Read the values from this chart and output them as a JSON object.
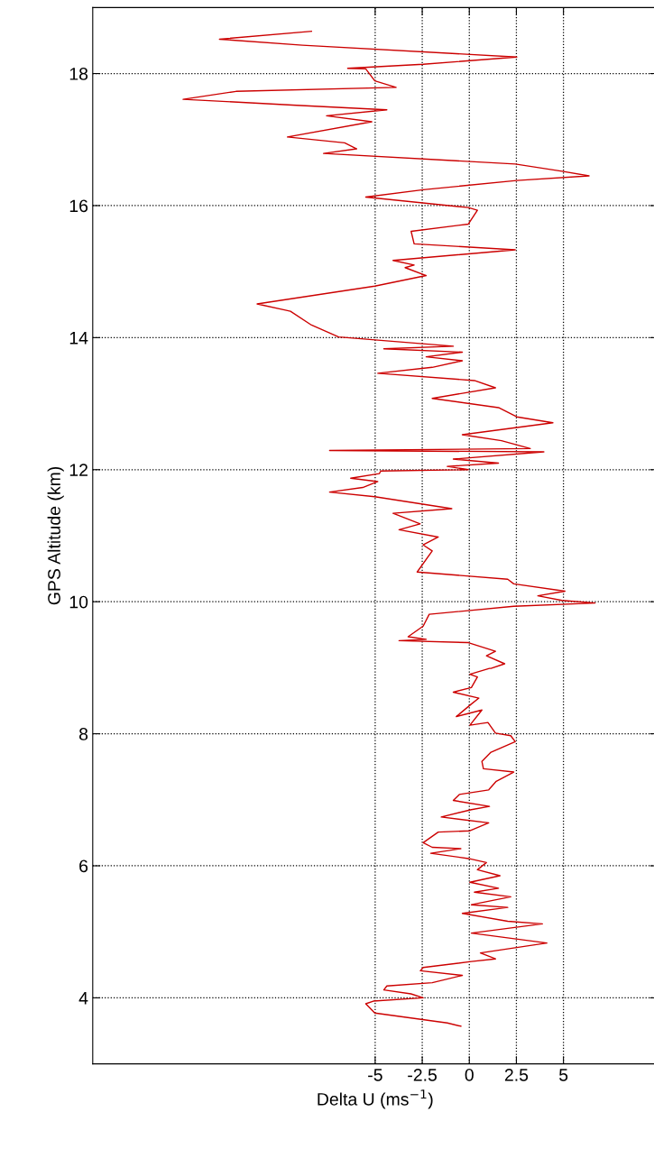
{
  "chart_data": {
    "type": "line",
    "xlabel": "Delta U (ms$^{−1}$)",
    "ylabel": "GPS Altitude (km)",
    "xlim": [
      -20,
      10
    ],
    "xticks": [
      -5,
      -2.5,
      0,
      2.5,
      5
    ],
    "ylim": [
      3,
      19
    ],
    "yticks": [
      4,
      6,
      8,
      10,
      12,
      14,
      16,
      18
    ],
    "grid": true,
    "marker": "none",
    "line_style": "solid",
    "series": [
      {
        "color": "#cc0000",
        "x": [
          -0.45,
          -1.17,
          -5.02,
          -5.5,
          -5.1,
          -2.45,
          -3.1,
          -4.54,
          -4.38,
          -1.97,
          -0.37,
          -2.6,
          -2.45,
          0.11,
          1.39,
          0.59,
          4.12,
          0.11,
          3.88,
          2.04,
          -0.37,
          2.04,
          0.11,
          2.2,
          0.27,
          1.55,
          0.03,
          1.63,
          0.43,
          0.91,
          -0.05,
          -2.05,
          -0.45,
          -1.97,
          -2.45,
          -1.65,
          0.03,
          1.03,
          -1.49,
          0.11,
          1.07,
          -0.85,
          -0.53,
          1.03,
          1.43,
          2.36,
          0.75,
          0.67,
          1.15,
          2.44,
          2.2,
          1.39,
          0.99,
          0.03,
          0.67,
          -0.69,
          0.11,
          0.51,
          -0.85,
          0.11,
          0.43,
          0.03,
          1.07,
          1.15,
          1.88,
          0.91,
          1.39,
          -0.05,
          -3.73,
          -2.29,
          -3.25,
          -2.45,
          -2.13,
          2.36,
          6.68,
          4.92,
          3.64,
          5.08,
          2.36,
          2.04,
          -2.77,
          -1.97,
          -2.45,
          -1.65,
          -3.73,
          -2.61,
          -4.05,
          -0.93,
          -5.02,
          -7.42,
          -5.66,
          -4.86,
          -6.3,
          -4.78,
          -4.7,
          -0.05,
          -1.17,
          1.55,
          -0.85,
          3.96,
          -7.42,
          3.24,
          1.71,
          -0.37,
          4.44,
          2.52,
          1.55,
          -1.97,
          1.39,
          0.27,
          -4.86,
          -1.97,
          -0.37,
          -2.29,
          -0.37,
          -4.54,
          -0.85,
          -6.94,
          -8.38,
          -9.5,
          -9.82,
          -11.27,
          -5.02,
          -2.29,
          -3.41,
          -2.93,
          -4.05,
          2.44,
          -2.93,
          -3.09,
          -0.05,
          0.43,
          -0.05,
          -5.5,
          -2.45,
          2.52,
          6.36,
          4.92,
          2.44,
          -7.74,
          -5.98,
          -6.62,
          -9.66,
          -5.18,
          -7.58,
          -4.38,
          -9.18,
          -15.2,
          -12.39,
          -3.89,
          -5.02,
          -5.5,
          -6.46,
          -2.45,
          2.52,
          -8.86,
          -13.27,
          -8.38
        ],
        "values": [
          3.57,
          3.62,
          3.77,
          3.91,
          3.95,
          4.0,
          4.06,
          4.12,
          4.18,
          4.23,
          4.34,
          4.41,
          4.46,
          4.55,
          4.59,
          4.68,
          4.83,
          4.98,
          5.12,
          5.16,
          5.28,
          5.37,
          5.41,
          5.53,
          5.6,
          5.66,
          5.75,
          5.85,
          5.94,
          6.05,
          6.11,
          6.19,
          6.26,
          6.28,
          6.35,
          6.51,
          6.53,
          6.65,
          6.74,
          6.85,
          6.9,
          6.99,
          7.08,
          7.15,
          7.28,
          7.42,
          7.47,
          7.58,
          7.72,
          7.88,
          7.97,
          8.01,
          8.17,
          8.13,
          8.36,
          8.26,
          8.45,
          8.54,
          8.63,
          8.7,
          8.86,
          8.9,
          8.99,
          8.99,
          9.06,
          9.18,
          9.25,
          9.38,
          9.41,
          9.43,
          9.47,
          9.63,
          9.81,
          9.93,
          9.98,
          10.02,
          10.09,
          10.16,
          10.27,
          10.34,
          10.45,
          10.77,
          10.86,
          10.98,
          11.09,
          11.18,
          11.34,
          11.41,
          11.59,
          11.66,
          11.73,
          11.82,
          11.87,
          11.94,
          11.98,
          12.0,
          12.05,
          12.1,
          12.16,
          12.27,
          12.29,
          12.32,
          12.44,
          12.53,
          12.71,
          12.8,
          12.94,
          13.08,
          13.24,
          13.35,
          13.46,
          13.55,
          13.65,
          13.71,
          13.78,
          13.83,
          13.87,
          14.01,
          14.19,
          14.4,
          14.42,
          14.51,
          14.78,
          14.94,
          15.06,
          15.1,
          15.17,
          15.33,
          15.42,
          15.61,
          15.72,
          15.93,
          15.97,
          16.13,
          16.24,
          16.38,
          16.45,
          16.52,
          16.63,
          16.79,
          16.86,
          16.95,
          17.04,
          17.27,
          17.36,
          17.45,
          17.52,
          17.61,
          17.73,
          17.79,
          17.89,
          18.07,
          18.08,
          18.14,
          18.25,
          18.43,
          18.52,
          18.64
        ]
      }
    ]
  }
}
